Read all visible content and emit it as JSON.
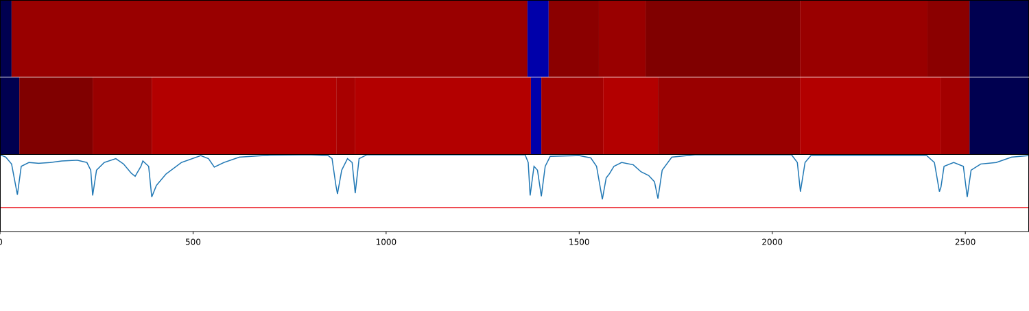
{
  "chart_data": {
    "type": "line",
    "xlim": [
      0,
      2665
    ],
    "ylim": [
      0,
      1
    ],
    "xticks": [
      0,
      500,
      1000,
      1500,
      2000,
      2500
    ],
    "heatmap_rows": [
      {
        "segments": [
          {
            "start": 0,
            "end": 30,
            "color": "#000050"
          },
          {
            "start": 30,
            "end": 1366,
            "color": "#990000"
          },
          {
            "start": 1366,
            "end": 1421,
            "color": "#0000aa"
          },
          {
            "start": 1421,
            "end": 1551,
            "color": "#8b0000"
          },
          {
            "start": 1551,
            "end": 1672,
            "color": "#990000"
          },
          {
            "start": 1672,
            "end": 2072,
            "color": "#800000"
          },
          {
            "start": 2072,
            "end": 2402,
            "color": "#990000"
          },
          {
            "start": 2402,
            "end": 2511,
            "color": "#8b0000"
          },
          {
            "start": 2511,
            "end": 2665,
            "color": "#000050"
          }
        ]
      },
      {
        "segments": [
          {
            "start": 0,
            "end": 50,
            "color": "#000050"
          },
          {
            "start": 50,
            "end": 240,
            "color": "#800000"
          },
          {
            "start": 240,
            "end": 393,
            "color": "#990000"
          },
          {
            "start": 393,
            "end": 871,
            "color": "#b30000"
          },
          {
            "start": 871,
            "end": 920,
            "color": "#a80000"
          },
          {
            "start": 920,
            "end": 1375,
            "color": "#b30000"
          },
          {
            "start": 1375,
            "end": 1402,
            "color": "#0000aa"
          },
          {
            "start": 1402,
            "end": 1562,
            "color": "#a30000"
          },
          {
            "start": 1562,
            "end": 1704,
            "color": "#b30000"
          },
          {
            "start": 1704,
            "end": 2072,
            "color": "#990000"
          },
          {
            "start": 2072,
            "end": 2436,
            "color": "#b30000"
          },
          {
            "start": 2436,
            "end": 2511,
            "color": "#a30000"
          },
          {
            "start": 2511,
            "end": 2665,
            "color": "#000050"
          }
        ]
      }
    ],
    "series": [
      {
        "color": "#1f77b4",
        "x": [
          0,
          15,
          30,
          45,
          55,
          75,
          100,
          130,
          160,
          200,
          225,
          235,
          240,
          250,
          270,
          300,
          320,
          340,
          350,
          365,
          370,
          385,
          393,
          405,
          430,
          470,
          520,
          540,
          555,
          580,
          620,
          700,
          800,
          850,
          860,
          870,
          874,
          885,
          900,
          912,
          920,
          930,
          950,
          1360,
          1368,
          1373,
          1383,
          1392,
          1402,
          1412,
          1425,
          1500,
          1530,
          1545,
          1560,
          1570,
          1578,
          1590,
          1610,
          1640,
          1660,
          1680,
          1695,
          1704,
          1715,
          1740,
          1800,
          2050,
          2065,
          2073,
          2085,
          2100,
          2400,
          2420,
          2433,
          2437,
          2445,
          2470,
          2495,
          2505,
          2515,
          2540,
          2580,
          2620,
          2665
        ],
        "values": [
          1.0,
          0.97,
          0.88,
          0.48,
          0.85,
          0.9,
          0.89,
          0.9,
          0.92,
          0.93,
          0.9,
          0.8,
          0.47,
          0.8,
          0.9,
          0.95,
          0.88,
          0.76,
          0.72,
          0.85,
          0.92,
          0.85,
          0.45,
          0.6,
          0.75,
          0.9,
          0.99,
          0.95,
          0.84,
          0.9,
          0.97,
          0.995,
          1.0,
          0.99,
          0.95,
          0.6,
          0.49,
          0.8,
          0.95,
          0.9,
          0.5,
          0.95,
          1.0,
          1.0,
          0.9,
          0.47,
          0.85,
          0.8,
          0.46,
          0.85,
          0.98,
          0.99,
          0.96,
          0.85,
          0.42,
          0.7,
          0.75,
          0.85,
          0.9,
          0.87,
          0.78,
          0.73,
          0.65,
          0.43,
          0.8,
          0.97,
          1.0,
          1.0,
          0.9,
          0.52,
          0.9,
          0.99,
          0.99,
          0.9,
          0.52,
          0.58,
          0.85,
          0.9,
          0.85,
          0.45,
          0.8,
          0.88,
          0.9,
          0.97,
          0.99
        ]
      }
    ],
    "threshold": 0.31,
    "threshold_color": "#e8000b"
  }
}
